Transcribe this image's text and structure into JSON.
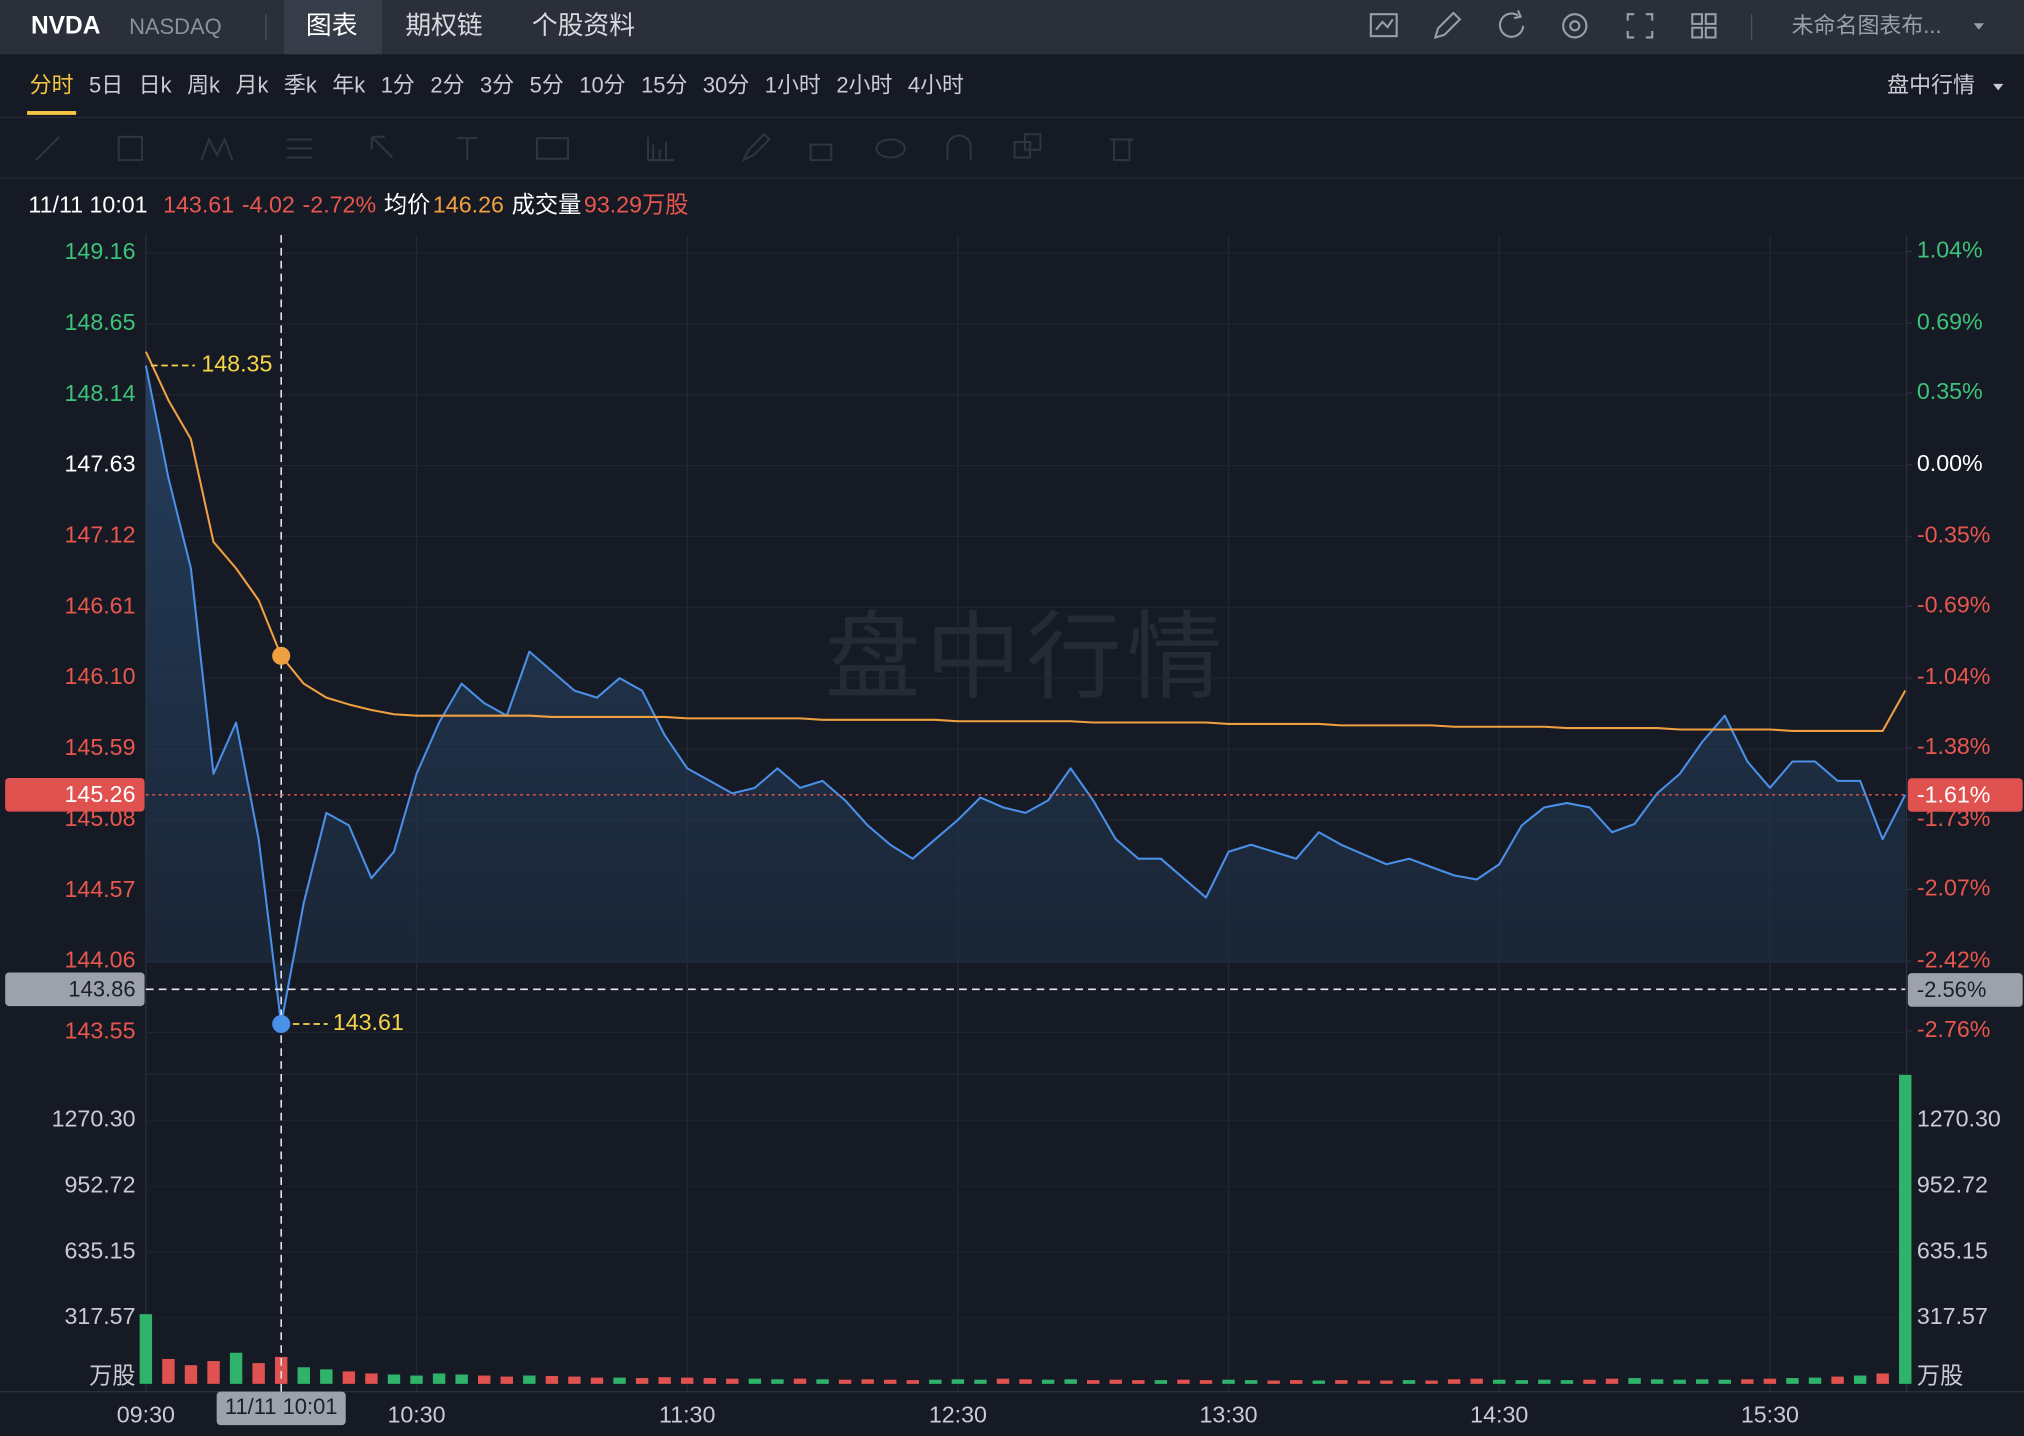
{
  "header": {
    "symbol": "NVDA",
    "exchange": "NASDAQ",
    "tabs": [
      "图表",
      "期权链",
      "个股资料"
    ],
    "layout_name": "未命名图表布..."
  },
  "periods": [
    "分时",
    "5日",
    "日k",
    "周k",
    "月k",
    "季k",
    "年k",
    "1分",
    "2分",
    "3分",
    "5分",
    "10分",
    "15分",
    "30分",
    "1小时",
    "2小时",
    "4小时"
  ],
  "market_mode": "盘中行情",
  "info": {
    "time": "11/11 10:01",
    "price": 143.61,
    "change": -4.02,
    "change_pct": "-2.72%",
    "avg_label": "均价",
    "avg": 146.26,
    "volume_label": "成交量",
    "volume": "93.29万股"
  },
  "watermark": "盘中行情",
  "chart_data": [
    {
      "type": "line",
      "categories": [
        "09:30",
        null,
        null,
        null,
        null,
        null,
        null,
        null,
        null,
        null,
        null,
        null,
        "10:30",
        null,
        null,
        null,
        null,
        null,
        null,
        null,
        null,
        null,
        null,
        null,
        "11:30",
        null,
        null,
        null,
        null,
        null,
        null,
        null,
        null,
        null,
        null,
        null,
        "12:30",
        null,
        null,
        null,
        null,
        null,
        null,
        null,
        null,
        null,
        null,
        null,
        "13:30",
        null,
        null,
        null,
        null,
        null,
        null,
        null,
        null,
        null,
        null,
        null,
        "14:30",
        null,
        null,
        null,
        null,
        null,
        null,
        null,
        null,
        null,
        null,
        null,
        "15:30",
        null,
        null,
        null,
        null,
        null,
        null
      ],
      "series": [
        {
          "color": "#4a90e8",
          "values": [
            148.35,
            147.54,
            146.89,
            145.41,
            145.78,
            144.94,
            143.61,
            144.48,
            145.13,
            145.04,
            144.66,
            144.85,
            145.41,
            145.78,
            146.06,
            145.92,
            145.83,
            146.29,
            146.15,
            146.01,
            145.96,
            146.1,
            146.01,
            145.69,
            145.45,
            145.36,
            145.27,
            145.31,
            145.45,
            145.31,
            145.36,
            145.22,
            145.04,
            144.9,
            144.8,
            144.94,
            145.08,
            145.24,
            145.17,
            145.13,
            145.22,
            145.45,
            145.22,
            144.94,
            144.8,
            144.8,
            144.66,
            144.52,
            144.85,
            144.9,
            144.85,
            144.8,
            144.99,
            144.9,
            144.83,
            144.76,
            144.8,
            144.74,
            144.68,
            144.65,
            144.76,
            145.04,
            145.17,
            145.2,
            145.17,
            144.99,
            145.05,
            145.27,
            145.41,
            145.64,
            145.83,
            145.5,
            145.31,
            145.5,
            145.5,
            145.36,
            145.36,
            144.94,
            145.26
          ]
        },
        {
          "color": "#f0a040",
          "values": [
            148.45,
            148.1,
            147.82,
            147.08,
            146.89,
            146.66,
            146.26,
            146.06,
            145.96,
            145.91,
            145.87,
            145.84,
            145.83,
            145.83,
            145.83,
            145.83,
            145.83,
            145.83,
            145.82,
            145.82,
            145.82,
            145.82,
            145.82,
            145.82,
            145.81,
            145.81,
            145.81,
            145.81,
            145.81,
            145.81,
            145.8,
            145.8,
            145.8,
            145.8,
            145.8,
            145.8,
            145.79,
            145.79,
            145.79,
            145.79,
            145.79,
            145.79,
            145.78,
            145.78,
            145.78,
            145.78,
            145.78,
            145.78,
            145.77,
            145.77,
            145.77,
            145.77,
            145.77,
            145.76,
            145.76,
            145.76,
            145.76,
            145.76,
            145.75,
            145.75,
            145.75,
            145.75,
            145.75,
            145.74,
            145.74,
            145.74,
            145.74,
            145.74,
            145.73,
            145.73,
            145.73,
            145.73,
            145.73,
            145.72,
            145.72,
            145.72,
            145.72,
            145.72,
            146.01
          ]
        }
      ],
      "ylim": [
        143.25,
        149.29
      ],
      "yticks": [
        149.16,
        148.65,
        148.14,
        147.63,
        147.12,
        146.61,
        {
          "value": 146.1,
          "label": "146.10"
        },
        145.59,
        145.08,
        144.57,
        144.06,
        143.55
      ],
      "y2lim": [
        -2.97,
        1.12
      ],
      "y2ticks": [
        {
          "value": 1.04,
          "label": "1.04%"
        },
        {
          "value": 0.69,
          "label": "0.69%"
        },
        {
          "value": 0.35,
          "label": "0.35%"
        },
        {
          "value": 0,
          "label": "0.00%"
        },
        {
          "value": -0.35,
          "label": "-0.35%"
        },
        {
          "value": -0.69,
          "label": "-0.69%"
        },
        {
          "value": -1.04,
          "label": "-1.04%"
        },
        {
          "value": -1.38,
          "label": "-1.38%"
        },
        {
          "value": -1.73,
          "label": "-1.73%"
        },
        {
          "value": -2.07,
          "label": "-2.07%"
        },
        {
          "value": -2.42,
          "label": "-2.42%"
        },
        {
          "value": -2.76,
          "label": "-2.76%"
        }
      ],
      "grid": true,
      "last": {
        "value": 145.26,
        "pct": {
          "value": -1.61,
          "label": "-1.61%"
        },
        "color": "#e0524f"
      },
      "crosshair": {
        "x_label": "11/11 10:01",
        "value": 143.86,
        "pct": {
          "value": -2.56,
          "label": "-2.56%"
        }
      },
      "max_label": 148.35,
      "min_label": 143.61
    },
    {
      "type": "bar",
      "categories": [
        "09:30",
        null,
        null,
        null,
        null,
        null,
        null,
        null,
        null,
        null,
        null,
        null,
        "10:30",
        null,
        null,
        null,
        null,
        null,
        null,
        null,
        null,
        null,
        null,
        null,
        "11:30",
        null,
        null,
        null,
        null,
        null,
        null,
        null,
        null,
        null,
        null,
        null,
        "12:30",
        null,
        null,
        null,
        null,
        null,
        null,
        null,
        null,
        null,
        null,
        null,
        "13:30",
        null,
        null,
        null,
        null,
        null,
        null,
        null,
        null,
        null,
        null,
        null,
        "14:30",
        null,
        null,
        null,
        null,
        null,
        null,
        null,
        null,
        null,
        null,
        null,
        "15:30",
        null,
        null,
        null,
        null,
        null,
        null
      ],
      "values": [
        336,
        120,
        90,
        110,
        150,
        100,
        130,
        80,
        70,
        60,
        50,
        45,
        40,
        50,
        45,
        40,
        35,
        40,
        38,
        35,
        30,
        30,
        28,
        32,
        30,
        28,
        25,
        25,
        22,
        25,
        22,
        20,
        22,
        20,
        18,
        20,
        22,
        20,
        25,
        22,
        20,
        22,
        18,
        20,
        18,
        18,
        20,
        18,
        20,
        18,
        16,
        18,
        16,
        18,
        16,
        16,
        18,
        16,
        22,
        25,
        20,
        18,
        20,
        18,
        20,
        25,
        28,
        22,
        20,
        22,
        20,
        22,
        25,
        28,
        30,
        35,
        40,
        50,
        1490
      ],
      "up_color": "#2fb36b",
      "down_color": "#e0524f",
      "ylim": [
        0,
        1494
      ],
      "yticks": [
        317.57,
        635.15,
        952.72,
        {
          "value": 1270.3,
          "label": "1270.30"
        }
      ],
      "unit": "万股",
      "grid": true
    }
  ]
}
